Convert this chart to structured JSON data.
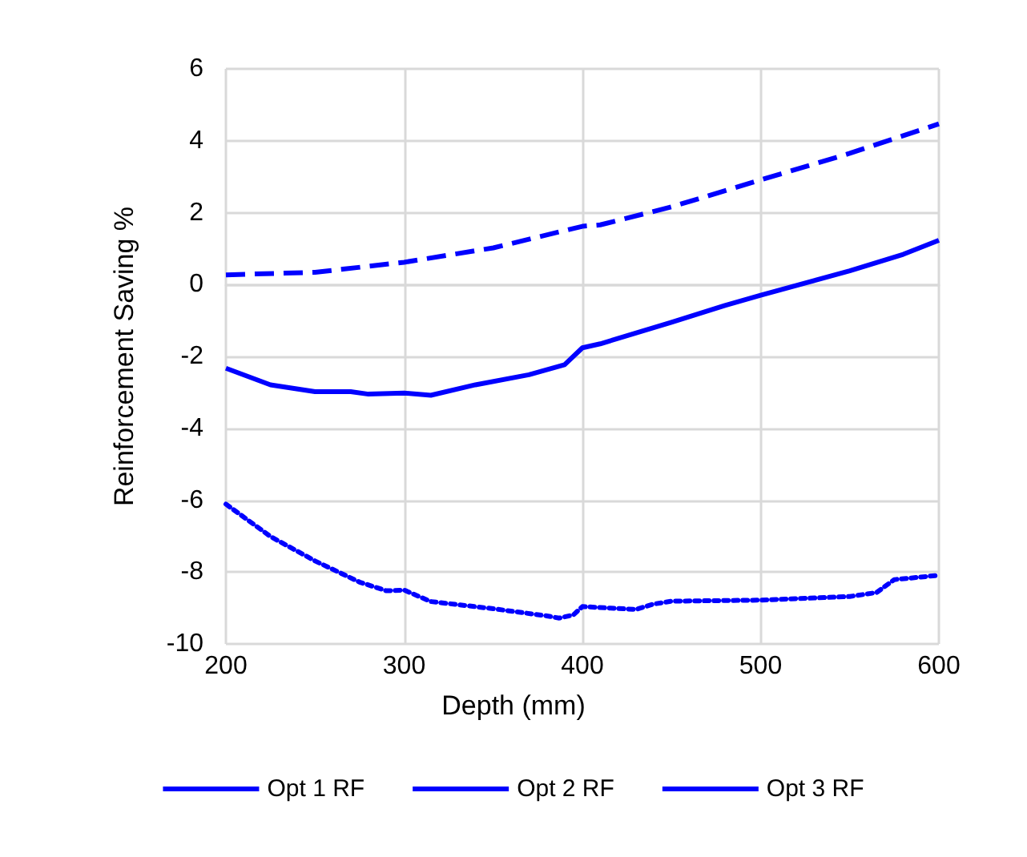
{
  "chart_data": {
    "type": "line",
    "xlabel": "Depth (mm)",
    "ylabel": "Reinforcement Saving %",
    "xlim": [
      200,
      600
    ],
    "ylim": [
      -10,
      6
    ],
    "xticks": [
      200,
      300,
      400,
      500,
      600
    ],
    "yticks": [
      -10,
      -8,
      -6,
      -4,
      -2,
      0,
      2,
      4,
      6
    ],
    "grid": true,
    "legend": "bottom",
    "marker": "none",
    "series": [
      {
        "name": "Opt 1 RF",
        "color": "#0000ff",
        "line_style": "dashed",
        "x": [
          200,
          250,
          300,
          350,
          400,
          410,
          450,
          500,
          550,
          600
        ],
        "values": [
          0.27,
          0.34,
          0.62,
          1.02,
          1.62,
          1.66,
          2.16,
          2.91,
          3.65,
          4.47
        ]
      },
      {
        "name": "Opt 2 RF",
        "color": "#0000ff",
        "line_style": "solid",
        "x": [
          200,
          225,
          250,
          270,
          280,
          300,
          315,
          340,
          370,
          390,
          400,
          410,
          450,
          480,
          500,
          550,
          580,
          600
        ],
        "values": [
          -2.33,
          -2.79,
          -2.98,
          -2.98,
          -3.05,
          -3.02,
          -3.08,
          -2.79,
          -2.51,
          -2.23,
          -1.76,
          -1.65,
          -1.05,
          -0.58,
          -0.3,
          0.38,
          0.84,
          1.23
        ]
      },
      {
        "name": "Opt 3 RF",
        "color": "#0000ff",
        "line_style": "dotted",
        "x": [
          200,
          225,
          250,
          275,
          290,
          300,
          315,
          350,
          380,
          387,
          395,
          400,
          430,
          440,
          450,
          500,
          550,
          565,
          575,
          600
        ],
        "values": [
          -6.11,
          -7.01,
          -7.69,
          -8.28,
          -8.52,
          -8.5,
          -8.82,
          -9.02,
          -9.22,
          -9.28,
          -9.19,
          -8.96,
          -9.04,
          -8.89,
          -8.81,
          -8.78,
          -8.68,
          -8.57,
          -8.21,
          -8.09
        ]
      }
    ]
  }
}
